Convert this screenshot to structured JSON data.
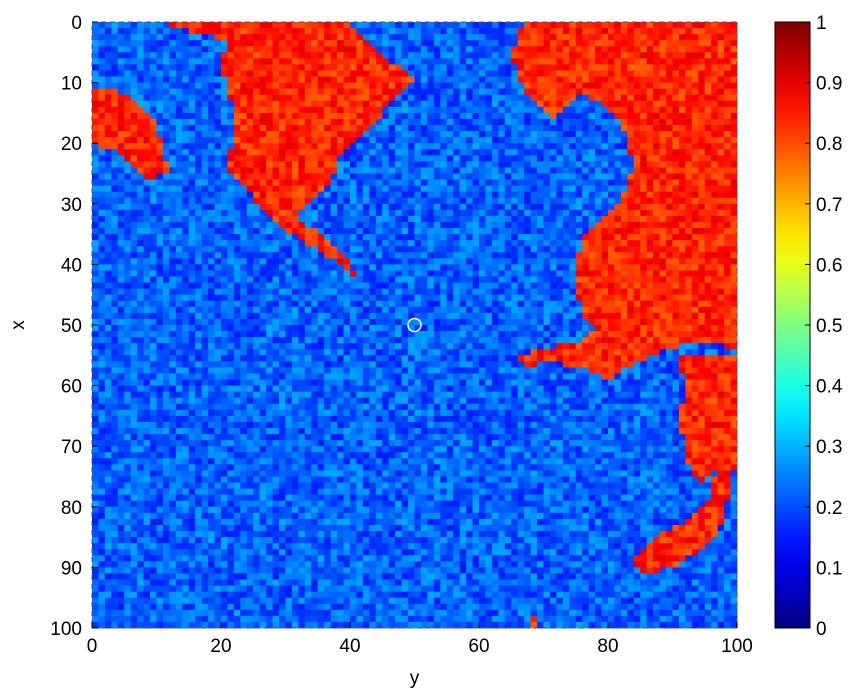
{
  "chart_data": {
    "type": "heatmap",
    "title": "",
    "xlabel": "y",
    "ylabel": "x",
    "x_range": [
      0,
      100
    ],
    "y_range": [
      0,
      100
    ],
    "y_axis_reversed": true,
    "x_ticks": [
      "0",
      "20",
      "40",
      "60",
      "80",
      "100"
    ],
    "y_ticks": [
      "0",
      "10",
      "20",
      "30",
      "40",
      "50",
      "60",
      "70",
      "80",
      "90",
      "100"
    ],
    "grid_size": 100,
    "color_range": [
      0,
      1
    ],
    "colormap": "jet",
    "colorbar_ticks": [
      "0",
      "0.1",
      "0.2",
      "0.3",
      "0.4",
      "0.5",
      "0.6",
      "0.7",
      "0.8",
      "0.9",
      "1"
    ],
    "low_state_value": 0.22,
    "high_state_value": 0.84,
    "high_state_regions": [
      {
        "name": "upper-left-corner-patch",
        "polygon": [
          [
            0,
            11
          ],
          [
            0,
            20
          ],
          [
            3,
            21
          ],
          [
            6,
            23
          ],
          [
            9,
            26
          ],
          [
            12,
            25
          ],
          [
            11,
            20
          ],
          [
            9,
            15
          ],
          [
            6,
            12
          ],
          [
            3,
            11
          ]
        ]
      },
      {
        "name": "top-center-patch",
        "polygon": [
          [
            12,
            0
          ],
          [
            40,
            0
          ],
          [
            42,
            2
          ],
          [
            44,
            4
          ],
          [
            45,
            6
          ],
          [
            48,
            7
          ],
          [
            50,
            9
          ],
          [
            49,
            11
          ],
          [
            46,
            13
          ],
          [
            45,
            15
          ],
          [
            43,
            18
          ],
          [
            41,
            20
          ],
          [
            39,
            21
          ],
          [
            38,
            24
          ],
          [
            37,
            27
          ],
          [
            34,
            30
          ],
          [
            32,
            32
          ],
          [
            28,
            31
          ],
          [
            26,
            29
          ],
          [
            24,
            27
          ],
          [
            22,
            26
          ],
          [
            21,
            23
          ],
          [
            22,
            20
          ],
          [
            22,
            15
          ],
          [
            21,
            10
          ],
          [
            20,
            7
          ],
          [
            21,
            3
          ],
          [
            17,
            2
          ],
          [
            13,
            1
          ]
        ]
      },
      {
        "name": "diagonal-streak",
        "polygon": [
          [
            22,
            25
          ],
          [
            25,
            29
          ],
          [
            28,
            32
          ],
          [
            31,
            35
          ],
          [
            34,
            37
          ],
          [
            37,
            39
          ],
          [
            40,
            41
          ],
          [
            41,
            42
          ],
          [
            40,
            39
          ],
          [
            37,
            36
          ],
          [
            34,
            34
          ],
          [
            31,
            32
          ],
          [
            28,
            29
          ],
          [
            25,
            26
          ]
        ]
      },
      {
        "name": "right-side-patch",
        "polygon": [
          [
            67,
            0
          ],
          [
            100,
            0
          ],
          [
            100,
            54
          ],
          [
            96,
            53
          ],
          [
            93,
            53
          ],
          [
            90,
            54
          ],
          [
            87,
            55
          ],
          [
            83,
            57
          ],
          [
            80,
            59
          ],
          [
            76,
            57
          ],
          [
            71,
            56
          ],
          [
            67,
            57
          ],
          [
            66,
            55
          ],
          [
            70,
            54
          ],
          [
            75,
            53
          ],
          [
            78,
            51
          ],
          [
            76,
            48
          ],
          [
            75,
            44
          ],
          [
            75,
            40
          ],
          [
            76,
            36
          ],
          [
            79,
            33
          ],
          [
            82,
            29
          ],
          [
            84,
            24
          ],
          [
            83,
            19
          ],
          [
            81,
            15
          ],
          [
            79,
            13
          ],
          [
            76,
            12
          ],
          [
            72,
            16
          ],
          [
            69,
            13
          ],
          [
            67,
            11
          ],
          [
            65,
            6
          ],
          [
            66,
            2
          ]
        ]
      },
      {
        "name": "lower-right-strip",
        "polygon": [
          [
            91,
            55
          ],
          [
            100,
            55
          ],
          [
            100,
            73
          ],
          [
            97,
            74
          ],
          [
            95,
            76
          ],
          [
            93,
            75
          ],
          [
            92,
            70
          ],
          [
            91,
            66
          ],
          [
            92,
            60
          ]
        ]
      },
      {
        "name": "lower-right-hook",
        "polygon": [
          [
            97,
            72
          ],
          [
            100,
            72
          ],
          [
            99,
            77
          ],
          [
            98,
            82
          ],
          [
            96,
            86
          ],
          [
            93,
            88
          ],
          [
            90,
            90
          ],
          [
            86,
            91
          ],
          [
            84,
            89
          ],
          [
            86,
            86
          ],
          [
            89,
            84
          ],
          [
            93,
            82
          ],
          [
            96,
            78
          ]
        ]
      },
      {
        "name": "bottom-edge-dot",
        "polygon": [
          [
            68,
            98
          ],
          [
            69,
            98
          ],
          [
            69,
            100
          ],
          [
            68,
            100
          ]
        ]
      }
    ],
    "marker": {
      "y": 50,
      "x": 50,
      "shape": "open-circle",
      "color": "#ffffff"
    }
  }
}
